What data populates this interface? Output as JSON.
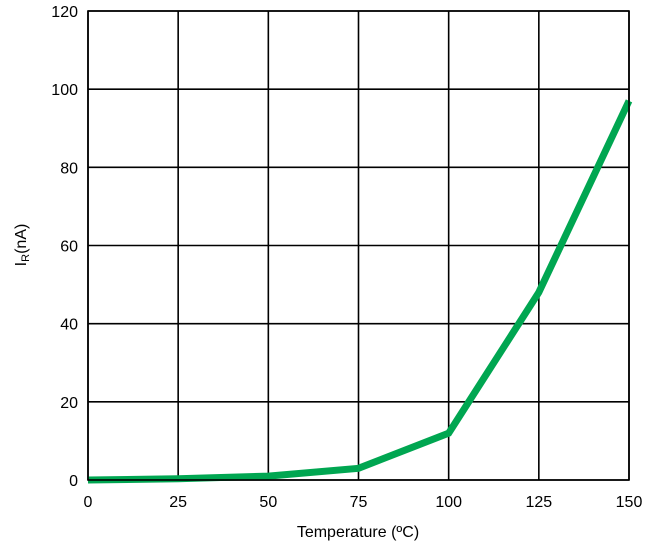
{
  "chart_data": {
    "type": "line",
    "title": "",
    "xlabel": "Temperature (ºC)",
    "ylabel_main": "I",
    "ylabel_sub": "R",
    "ylabel_suffix": "(nA)",
    "xlim": [
      0,
      150
    ],
    "ylim": [
      0,
      120
    ],
    "x_ticks": [
      0,
      25,
      50,
      75,
      100,
      125,
      150
    ],
    "y_ticks": [
      0,
      20,
      40,
      60,
      80,
      100,
      120
    ],
    "grid": true,
    "series": [
      {
        "color": "#00a651",
        "x": [
          0,
          25,
          50,
          75,
          100,
          125,
          150
        ],
        "y": [
          0,
          0.3,
          1,
          3,
          12,
          48,
          97
        ]
      }
    ]
  }
}
